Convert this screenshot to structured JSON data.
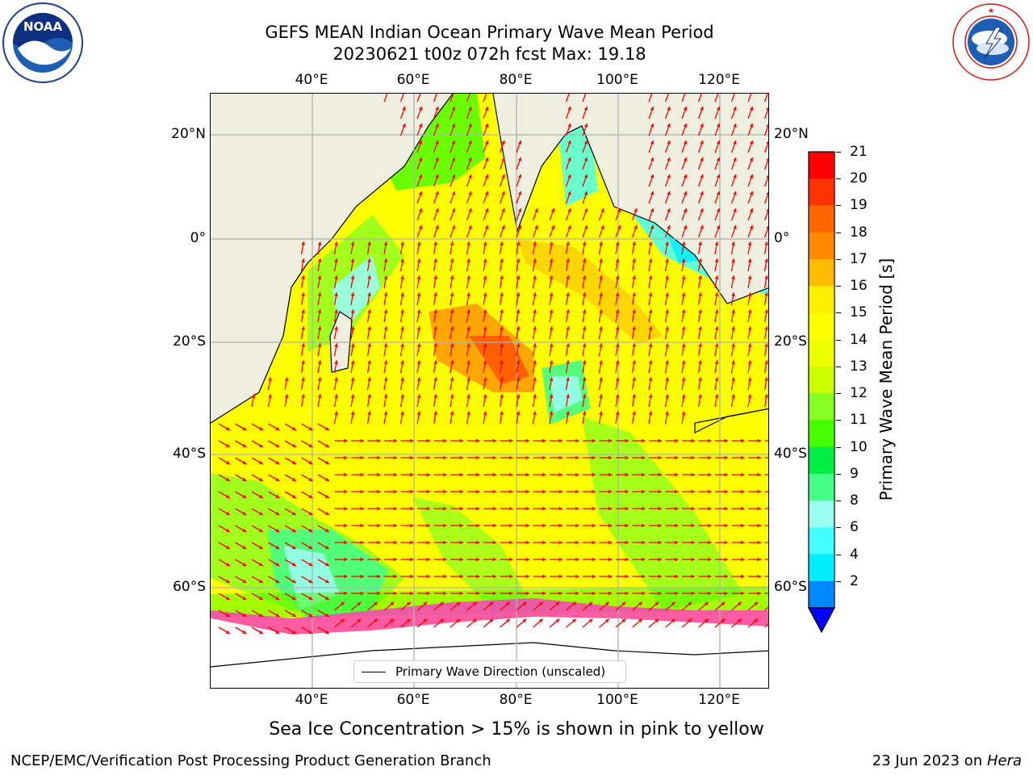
{
  "title": {
    "line1": "GEFS MEAN Indian Ocean Primary Wave Mean Period",
    "line2": "20230621 t00z 072h fcst   Max: 19.18"
  },
  "logos": {
    "noaa_text": "NOAA",
    "noaa_ring": "NATIONAL OCEANIC AND ATMOSPHERIC ADMINISTRATION · U.S. DEPARTMENT OF COMMERCE",
    "nws_ring": "NATIONAL WEATHER SERVICE"
  },
  "map": {
    "lon_labels": [
      "40°E",
      "60°E",
      "80°E",
      "100°E",
      "120°E"
    ],
    "lat_labels": [
      "20°N",
      "0°",
      "20°S",
      "40°S",
      "60°S"
    ],
    "legend_label": "Primary Wave Direction (unscaled)",
    "colors": {
      "land": "#efefdf",
      "ice_white": "#ffffff",
      "ice_pink": "#ff33cc",
      "grid": "#b0b0b0",
      "arrow": "#ff0000"
    }
  },
  "colorbar": {
    "title": "Primary Wave Mean Period [s]",
    "ticks": [
      "21",
      "20",
      "19",
      "18",
      "17",
      "16",
      "15",
      "14",
      "13",
      "12",
      "11",
      "10",
      "9",
      "8",
      "6",
      "4",
      "2"
    ],
    "colors": [
      "#ff0000",
      "#ff3300",
      "#ff6600",
      "#ff8800",
      "#ffbb00",
      "#ffee00",
      "#ffff00",
      "#eeff00",
      "#ccff00",
      "#88ff22",
      "#44ff00",
      "#00ee44",
      "#44ff88",
      "#99ffee",
      "#44ffff",
      "#00eeff",
      "#0088ff"
    ],
    "extend_color": "#0000ff"
  },
  "sea_ice_note": "Sea Ice Concentration > 15% is shown in pink to yellow",
  "footer": {
    "left": "NCEP/EMC/Verification Post Processing Product Generation Branch",
    "right_prefix": "23 Jun 2023 on ",
    "right_machine": "Hera"
  }
}
